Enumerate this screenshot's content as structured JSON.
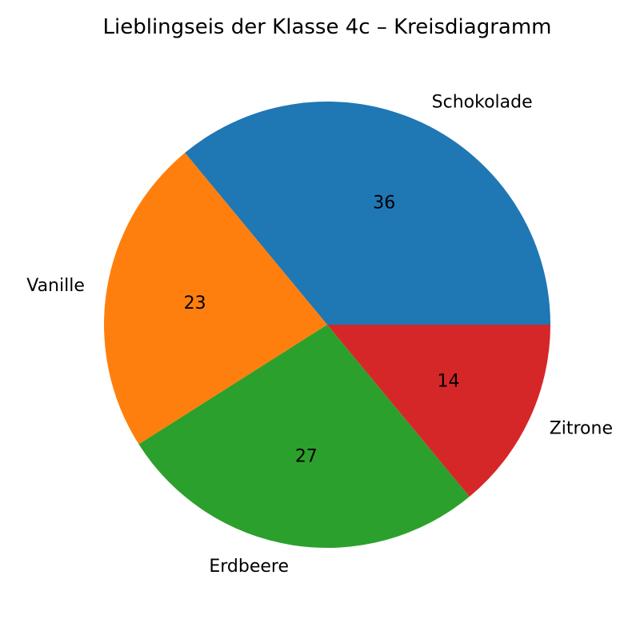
{
  "chart_data": {
    "type": "pie",
    "title": "Lieblingseis der Klasse 4c – Kreisdiagramm",
    "categories": [
      "Schokolade",
      "Vanille",
      "Erdbeere",
      "Zitrone"
    ],
    "values": [
      36,
      23,
      27,
      14
    ],
    "colors": [
      "#1f77b4",
      "#ff7f0e",
      "#2ca02c",
      "#d62728"
    ],
    "start_angle_deg": 0,
    "direction": "counterclockwise",
    "value_labels": [
      "36",
      "23",
      "27",
      "14"
    ],
    "legend": "none"
  }
}
